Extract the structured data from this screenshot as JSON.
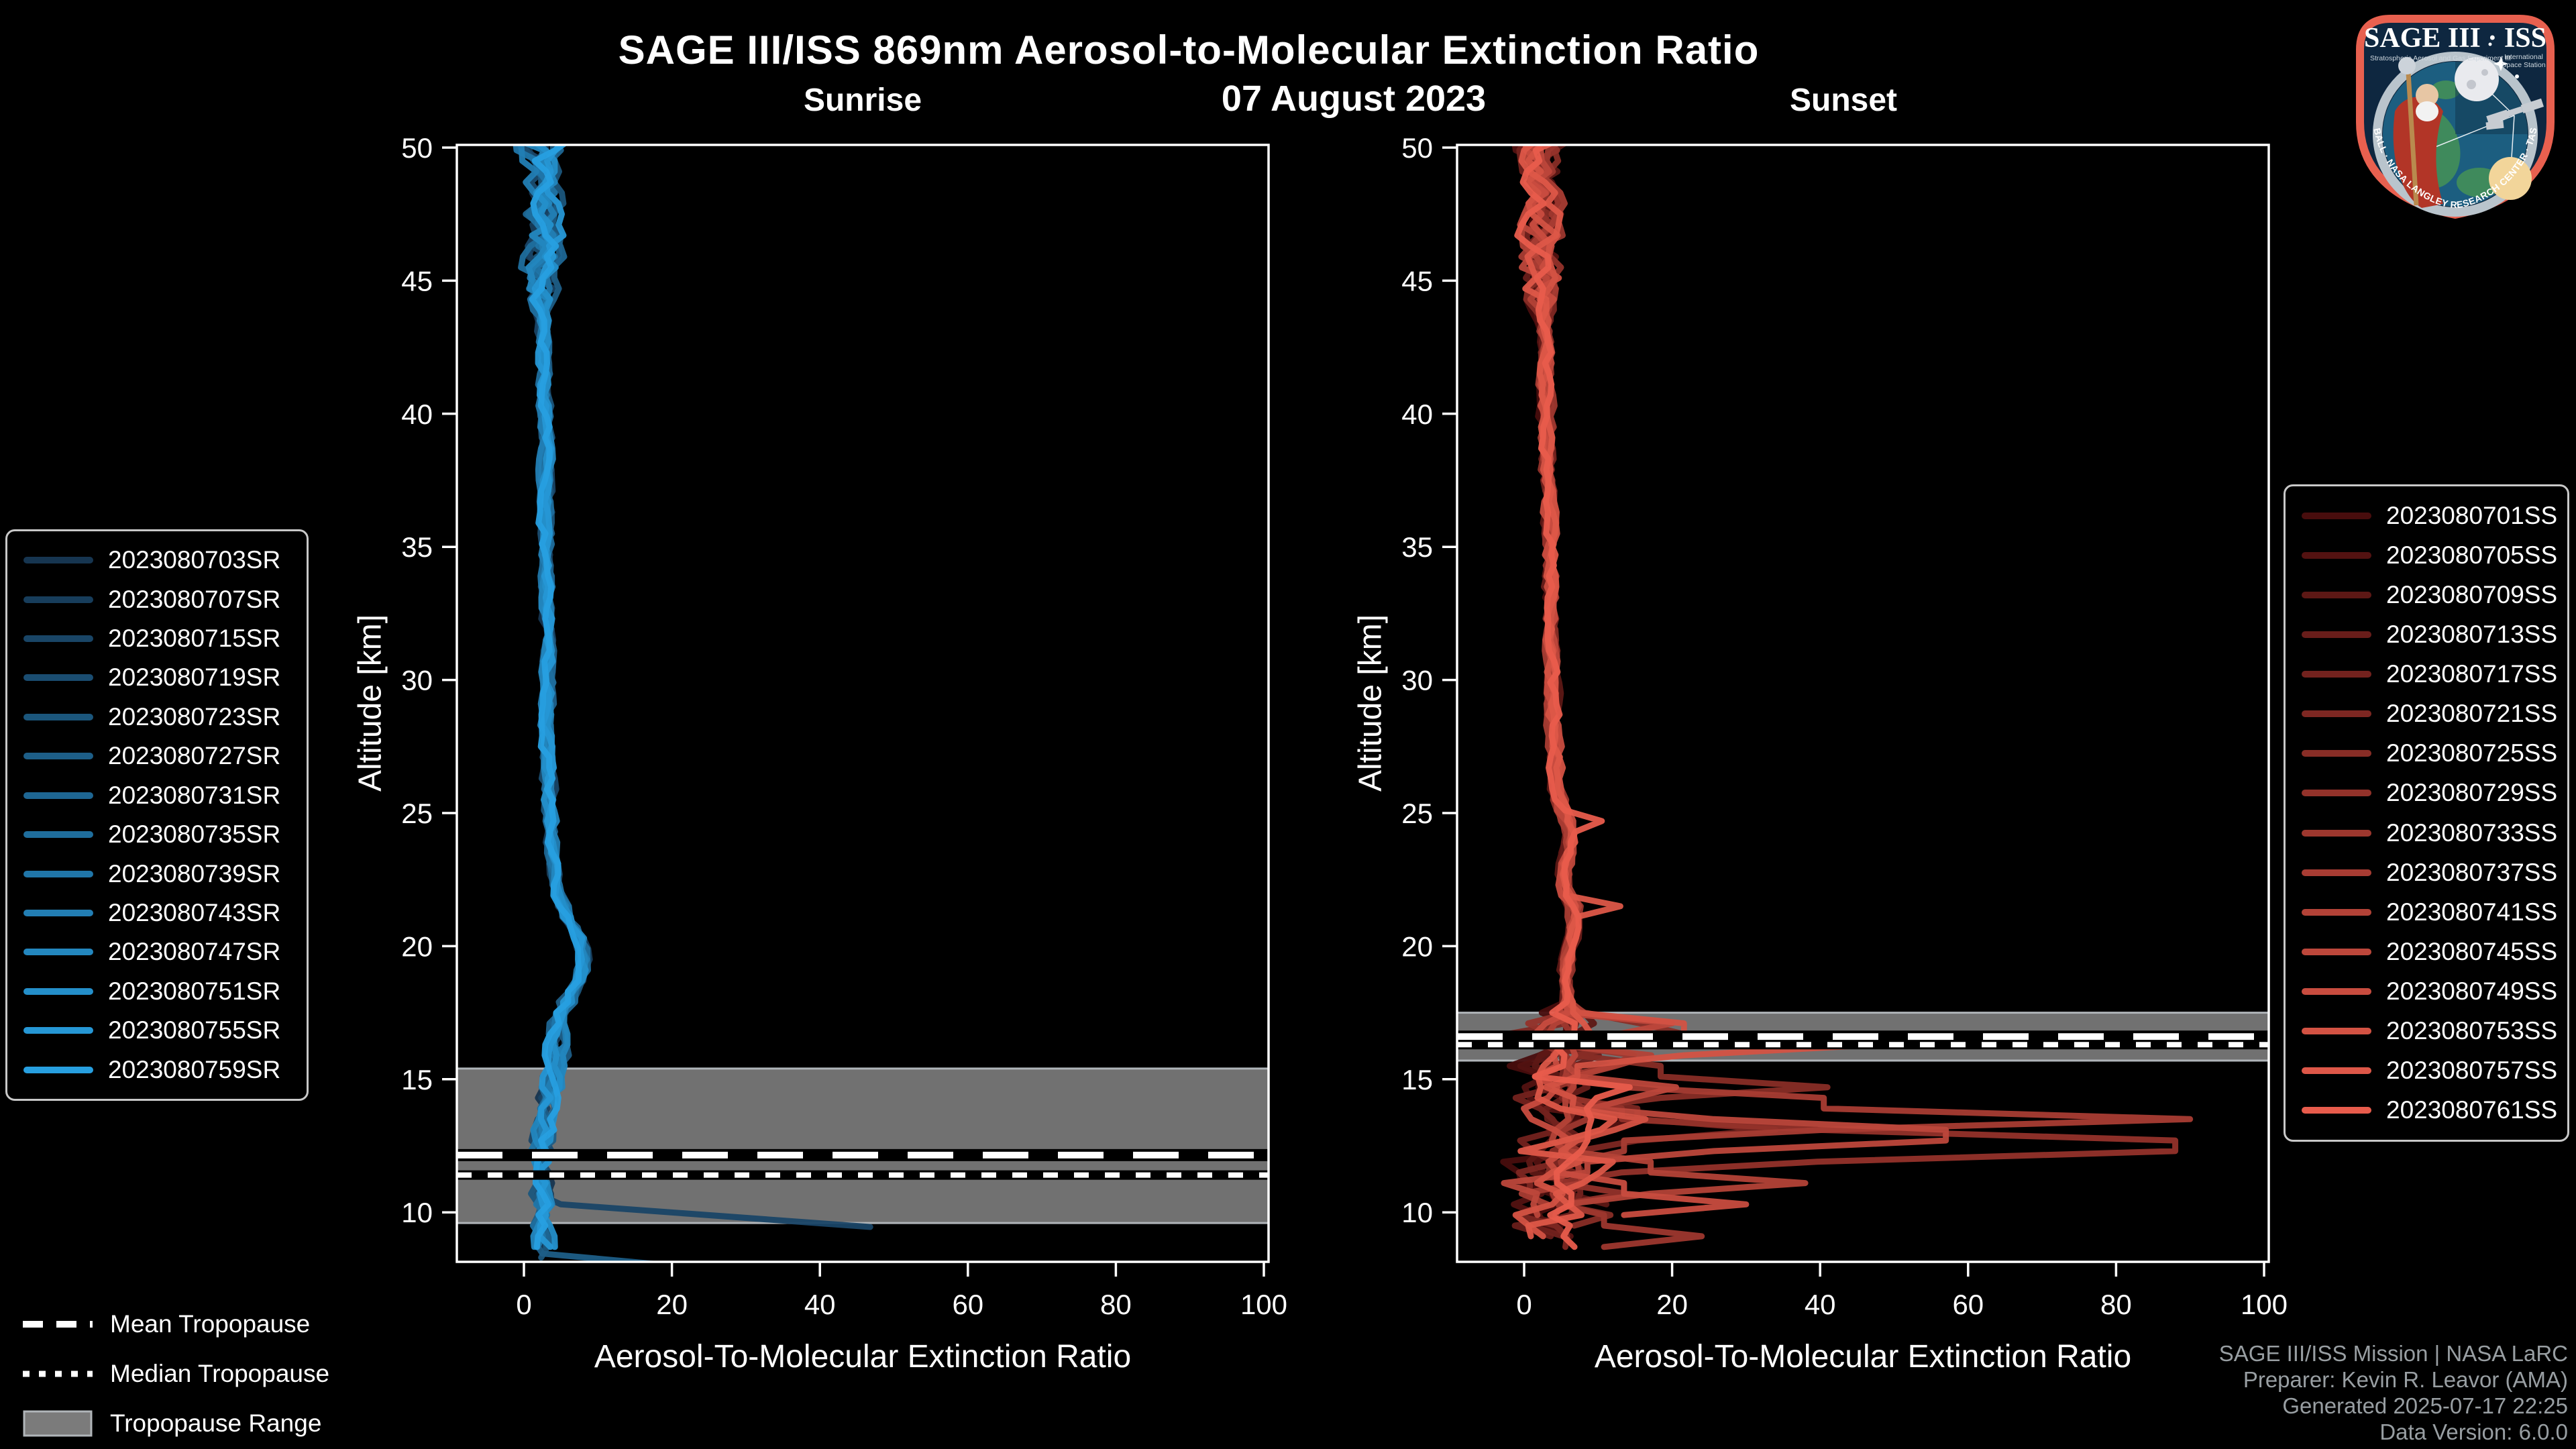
{
  "page": {
    "title": "SAGE III/ISS 869nm Aerosol-to-Molecular Extinction Ratio",
    "date": "07 August 2023"
  },
  "attribution": {
    "lines": [
      "SAGE III/ISS Mission | NASA LaRC",
      "Preparer: Kevin R. Leavor (AMA)",
      "Generated 2025-07-17 22:25",
      "Data Version: 6.0.0"
    ]
  },
  "tropopause_legend": {
    "mean": "Mean Tropopause",
    "median": "Median Tropopause",
    "range": "Tropopause Range"
  },
  "logo": {
    "title": "SAGE III · ISS",
    "left_caption": "Stratospheric Aerosol and Gas Experiment III",
    "right_caption_1": "International",
    "right_caption_2": "Space Station",
    "ring_caption": "BALL · NASA LANGLEY RESEARCH CENTER · TAS-I · ESA"
  },
  "colors": {
    "background": "#000000",
    "text": "#ffffff",
    "muted_text": "#989ea2",
    "axis": "#ffffff",
    "band": "#7b7b7b",
    "band_edge": "#b0b5b9",
    "legend_border": "#c8c8c8",
    "logo_border": "#e8604f",
    "logo_field": "#0e2740"
  },
  "chart_data": [
    {
      "panel": "sunrise",
      "type": "line",
      "title": "Sunrise",
      "xlabel": "Aerosol-To-Molecular Extinction Ratio",
      "ylabel": "Altitude [km]",
      "xlim": [
        -9.1,
        100.6
      ],
      "ylim": [
        8.1,
        50.1
      ],
      "xticks": [
        0,
        20,
        40,
        60,
        80,
        100
      ],
      "yticks": [
        10,
        15,
        20,
        25,
        30,
        35,
        40,
        45,
        50
      ],
      "grid": false,
      "legend_position": "outside-left",
      "tropopause": {
        "mean_km": 12.15,
        "median_km": 11.4,
        "range_km": [
          9.6,
          15.4
        ]
      },
      "series": [
        {
          "name": "2023080703SR",
          "color": "#163550"
        },
        {
          "name": "2023080707SR",
          "color": "#173d5b"
        },
        {
          "name": "2023080715SR",
          "color": "#194566"
        },
        {
          "name": "2023080719SR",
          "color": "#1a4d71"
        },
        {
          "name": "2023080723SR",
          "color": "#1b567c"
        },
        {
          "name": "2023080727SR",
          "color": "#1d5e87"
        },
        {
          "name": "2023080731SR",
          "color": "#1e6693"
        },
        {
          "name": "2023080735SR",
          "color": "#1f6e9d"
        },
        {
          "name": "2023080739SR",
          "color": "#2076a9"
        },
        {
          "name": "2023080743SR",
          "color": "#227eb4"
        },
        {
          "name": "2023080747SR",
          "color": "#2387bf"
        },
        {
          "name": "2023080751SR",
          "color": "#248fca"
        },
        {
          "name": "2023080755SR",
          "color": "#2697d5"
        },
        {
          "name": "2023080759SR",
          "color": "#279fe0"
        }
      ],
      "base_profile": [
        [
          50,
          2.5
        ],
        [
          49,
          2.0
        ],
        [
          48,
          2.5
        ],
        [
          47,
          2.2
        ],
        [
          46,
          2.6
        ],
        [
          45,
          2.4
        ],
        [
          44,
          2.6
        ],
        [
          42,
          2.8
        ],
        [
          40,
          2.9
        ],
        [
          38,
          3.0
        ],
        [
          36,
          3.0
        ],
        [
          34,
          3.1
        ],
        [
          32,
          3.2
        ],
        [
          30,
          3.3
        ],
        [
          28,
          3.2
        ],
        [
          26,
          3.4
        ],
        [
          24,
          3.8
        ],
        [
          22,
          4.8
        ],
        [
          21,
          6.5
        ],
        [
          20.5,
          8.2
        ],
        [
          20,
          8.6
        ],
        [
          19.5,
          8.3
        ],
        [
          19,
          7.6
        ],
        [
          18.5,
          6.3
        ],
        [
          18,
          5.0
        ],
        [
          17.5,
          4.2
        ],
        [
          17,
          3.8
        ],
        [
          16.5,
          4.3
        ],
        [
          16,
          4.6
        ],
        [
          15.5,
          4.2
        ],
        [
          15,
          3.6
        ],
        [
          14.5,
          3.2
        ],
        [
          14,
          2.9
        ],
        [
          13,
          2.6
        ],
        [
          12,
          2.3
        ],
        [
          11,
          2.2
        ],
        [
          10,
          2.4
        ],
        [
          9,
          2.6
        ],
        [
          8.5,
          3.2
        ],
        [
          8.1,
          4.0
        ]
      ],
      "noise": {
        "top_alt": 44,
        "top_amp": 4.0,
        "mid_amp": 1.3,
        "low_alt": 18,
        "low_amp": 2.3
      },
      "end_alt_base": 8.05,
      "end_alt_jitter": 0.7,
      "end_spikes": [
        {
          "series": 2,
          "stop_alt": 10.35,
          "tail": [
            [
              5,
              10.3
            ],
            [
              46.8,
              9.45
            ]
          ]
        },
        {
          "series": 5,
          "stop_alt": 8.6,
          "tail": [
            [
              2.5,
              8.45
            ],
            [
              24,
              7.9
            ]
          ]
        }
      ],
      "excursions": [],
      "seed": 11
    },
    {
      "panel": "sunset",
      "type": "line",
      "title": "Sunset",
      "xlabel": "Aerosol-To-Molecular Extinction Ratio",
      "ylabel": "Altitude [km]",
      "xlim": [
        -9.1,
        100.6
      ],
      "ylim": [
        8.1,
        50.1
      ],
      "xticks": [
        0,
        20,
        40,
        60,
        80,
        100
      ],
      "yticks": [
        10,
        15,
        20,
        25,
        30,
        35,
        40,
        45,
        50
      ],
      "grid": false,
      "legend_position": "outside-right",
      "tropopause": {
        "mean_km": 16.6,
        "median_km": 16.3,
        "range_km": [
          15.7,
          17.5
        ]
      },
      "series": [
        {
          "name": "2023080701SS",
          "color": "#480d0d"
        },
        {
          "name": "2023080705SS",
          "color": "#531211"
        },
        {
          "name": "2023080709SS",
          "color": "#5d1815"
        },
        {
          "name": "2023080713SS",
          "color": "#681d1a"
        },
        {
          "name": "2023080717SS",
          "color": "#73221e"
        },
        {
          "name": "2023080721SS",
          "color": "#7d2722"
        },
        {
          "name": "2023080725SS",
          "color": "#882d26"
        },
        {
          "name": "2023080729SS",
          "color": "#93322a"
        },
        {
          "name": "2023080733SS",
          "color": "#9d372e"
        },
        {
          "name": "2023080737SS",
          "color": "#a83c33"
        },
        {
          "name": "2023080741SS",
          "color": "#b34237"
        },
        {
          "name": "2023080745SS",
          "color": "#bd473b"
        },
        {
          "name": "2023080749SS",
          "color": "#c84c3f"
        },
        {
          "name": "2023080753SS",
          "color": "#d35243"
        },
        {
          "name": "2023080757SS",
          "color": "#dd5748"
        },
        {
          "name": "2023080761SS",
          "color": "#e85c4c"
        }
      ],
      "base_profile": [
        [
          50,
          2.2
        ],
        [
          49,
          2.6
        ],
        [
          48,
          2.2
        ],
        [
          47,
          2.8
        ],
        [
          46,
          2.4
        ],
        [
          45,
          2.8
        ],
        [
          44,
          2.7
        ],
        [
          42,
          2.8
        ],
        [
          40,
          3.0
        ],
        [
          38,
          3.2
        ],
        [
          36,
          3.4
        ],
        [
          34,
          3.6
        ],
        [
          32,
          3.7
        ],
        [
          30,
          3.8
        ],
        [
          28,
          4.0
        ],
        [
          26,
          4.6
        ],
        [
          25,
          5.6
        ],
        [
          24.5,
          6.8
        ],
        [
          24,
          6.2
        ],
        [
          23,
          5.2
        ],
        [
          22,
          6.0
        ],
        [
          21.5,
          7.6
        ],
        [
          21,
          6.8
        ],
        [
          20.5,
          6.2
        ],
        [
          20,
          6.0
        ],
        [
          19,
          5.8
        ],
        [
          18.5,
          6.0
        ],
        [
          18,
          6.2
        ],
        [
          17.5,
          6.0
        ],
        [
          17,
          5.2
        ],
        [
          16.5,
          4.6
        ],
        [
          16,
          4.2
        ],
        [
          15.5,
          4.6
        ],
        [
          15,
          5.0
        ],
        [
          14,
          5.4
        ],
        [
          13,
          5.0
        ],
        [
          12,
          4.6
        ],
        [
          11,
          4.2
        ],
        [
          10,
          4.0
        ],
        [
          9.5,
          4.2
        ],
        [
          9,
          4.6
        ]
      ],
      "noise": {
        "top_alt": 44,
        "top_amp": 4.2,
        "mid_amp": 1.4,
        "low_alt": 17.6,
        "low_amp": 5.5
      },
      "chaos": {
        "below": 17.6,
        "p": 0.11,
        "max": 26,
        "neg_p": 0.11,
        "neg_max": 8
      },
      "end_alt_base": 8.3,
      "end_alt_jitter": 2.0,
      "end_spikes": [],
      "excursions": [
        {
          "series": 9,
          "alt": 13.6,
          "peak": 90
        },
        {
          "series": 7,
          "alt": 12.55,
          "peak": 88
        },
        {
          "series": 11,
          "alt": 12.9,
          "peak": 57
        },
        {
          "series": 13,
          "alt": 16.35,
          "peak": 48
        },
        {
          "series": 6,
          "alt": 14.85,
          "peak": 41
        },
        {
          "series": 10,
          "alt": 11.15,
          "peak": 38
        },
        {
          "series": 5,
          "alt": 13.15,
          "peak": 34
        },
        {
          "series": 12,
          "alt": 10.45,
          "peak": 30
        },
        {
          "series": 8,
          "alt": 9.2,
          "peak": 24
        },
        {
          "series": 14,
          "alt": 21.5,
          "peak": 13
        },
        {
          "series": 15,
          "alt": 24.6,
          "peak": 10.5
        }
      ],
      "seed": 77
    }
  ]
}
